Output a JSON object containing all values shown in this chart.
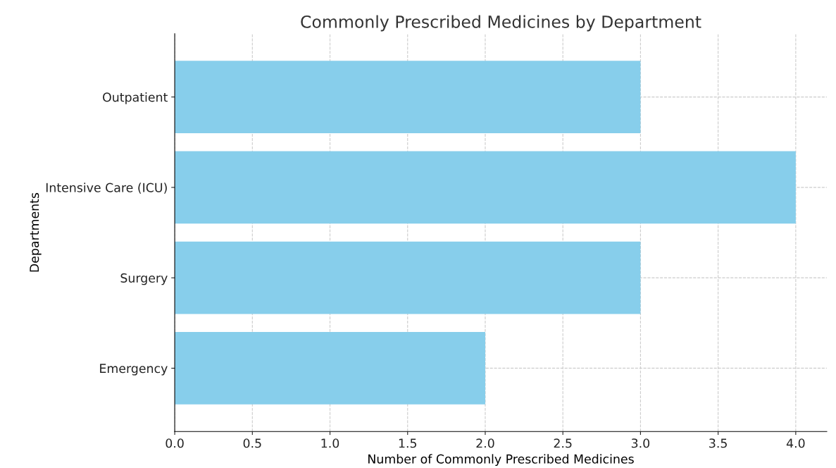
{
  "chart_data": {
    "type": "bar",
    "orientation": "horizontal",
    "title": "Commonly Prescribed Medicines by Department",
    "xlabel": "Number of Commonly Prescribed Medicines",
    "ylabel": "Departments",
    "categories": [
      "Outpatient",
      "Intensive Care (ICU)",
      "Surgery",
      "Emergency"
    ],
    "values": [
      3,
      4,
      3,
      2
    ],
    "color": "#87ceeb",
    "xlim": [
      0,
      4.2
    ],
    "xticks": [
      {
        "value": 0,
        "label": "0.0"
      },
      {
        "value": 0.5,
        "label": "0.5"
      },
      {
        "value": 1,
        "label": "1.0"
      },
      {
        "value": 1.5,
        "label": "1.5"
      },
      {
        "value": 2,
        "label": "2.0"
      },
      {
        "value": 2.5,
        "label": "2.5"
      },
      {
        "value": 3,
        "label": "3.0"
      },
      {
        "value": 3.5,
        "label": "3.5"
      },
      {
        "value": 4,
        "label": "4.0"
      }
    ],
    "grid": true,
    "line_style": "dashed"
  }
}
